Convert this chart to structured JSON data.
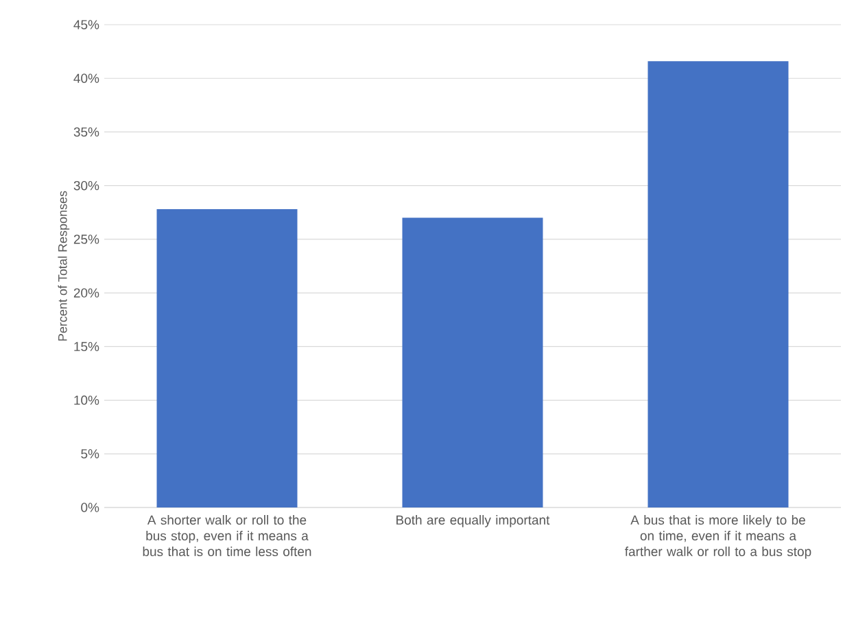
{
  "chart_data": {
    "type": "bar",
    "ylabel": "Percent of Total Responses",
    "categories": [
      "A shorter walk or roll to the bus stop, even if it means a bus that is on time less often",
      "Both are equally important",
      "A bus that is more likely to be on time, even if it means a farther walk or roll to a bus stop"
    ],
    "values": [
      27.8,
      27.0,
      41.6
    ],
    "color": "#4472c4",
    "ylim": [
      0,
      45
    ],
    "yticks": [
      {
        "value": 0,
        "label": "0%"
      },
      {
        "value": 5,
        "label": "5%"
      },
      {
        "value": 10,
        "label": "10%"
      },
      {
        "value": 15,
        "label": "15%"
      },
      {
        "value": 20,
        "label": "20%"
      },
      {
        "value": 25,
        "label": "25%"
      },
      {
        "value": 30,
        "label": "30%"
      },
      {
        "value": 35,
        "label": "35%"
      },
      {
        "value": 40,
        "label": "40%"
      },
      {
        "value": 45,
        "label": "45%"
      }
    ],
    "grid": "y"
  }
}
